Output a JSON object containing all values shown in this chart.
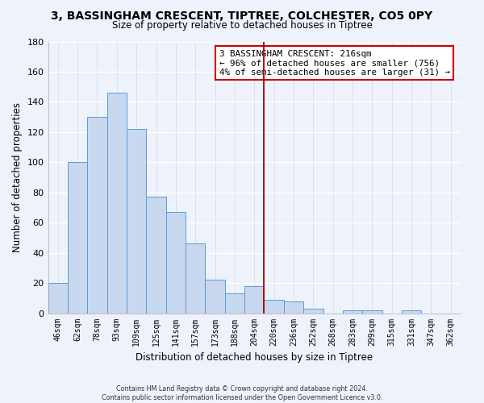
{
  "title": "3, BASSINGHAM CRESCENT, TIPTREE, COLCHESTER, CO5 0PY",
  "subtitle": "Size of property relative to detached houses in Tiptree",
  "xlabel": "Distribution of detached houses by size in Tiptree",
  "ylabel": "Number of detached properties",
  "bar_labels": [
    "46sqm",
    "62sqm",
    "78sqm",
    "93sqm",
    "109sqm",
    "125sqm",
    "141sqm",
    "157sqm",
    "173sqm",
    "188sqm",
    "204sqm",
    "220sqm",
    "236sqm",
    "252sqm",
    "268sqm",
    "283sqm",
    "299sqm",
    "315sqm",
    "331sqm",
    "347sqm",
    "362sqm"
  ],
  "bar_values": [
    20,
    100,
    130,
    146,
    122,
    77,
    67,
    46,
    22,
    13,
    18,
    9,
    8,
    3,
    0,
    2,
    2,
    0,
    2,
    0,
    0
  ],
  "bar_color": "#c8d8ef",
  "bar_edge_color": "#5b9bd5",
  "vline_color": "#aa0000",
  "vline_position": 10.5,
  "annotation_title": "3 BASSINGHAM CRESCENT: 216sqm",
  "annotation_line1": "← 96% of detached houses are smaller (756)",
  "annotation_line2": "4% of semi-detached houses are larger (31) →",
  "ylim": [
    0,
    180
  ],
  "yticks": [
    0,
    20,
    40,
    60,
    80,
    100,
    120,
    140,
    160,
    180
  ],
  "footer_line1": "Contains HM Land Registry data © Crown copyright and database right 2024.",
  "footer_line2": "Contains public sector information licensed under the Open Government Licence v3.0.",
  "background_color": "#eef2fa",
  "grid_color": "#d0d8e8"
}
